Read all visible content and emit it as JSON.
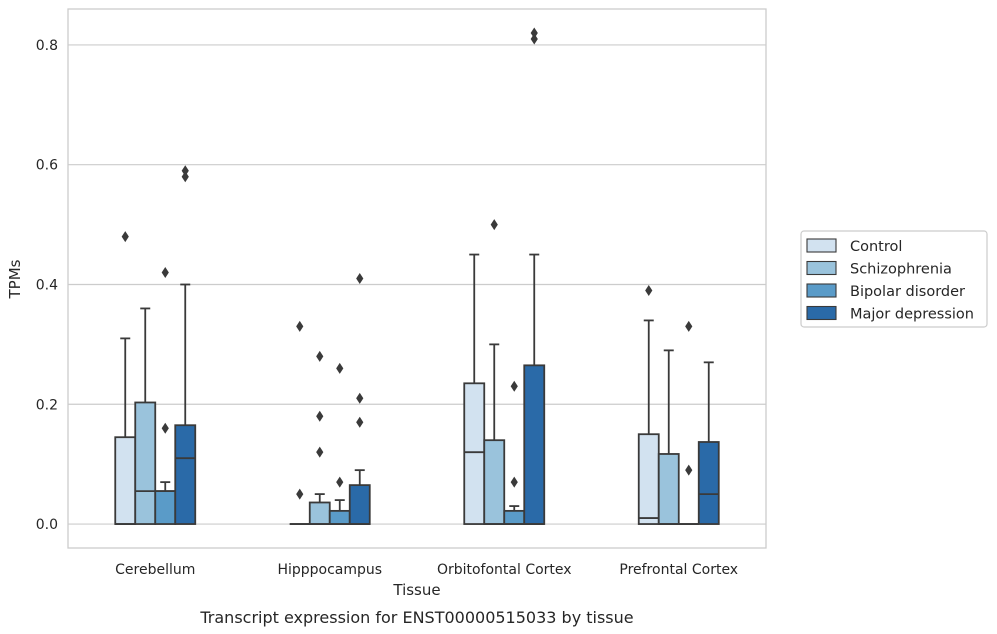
{
  "caption": "Transcript expression for ENST00000515033 by tissue",
  "chart_data": {
    "type": "box",
    "xlabel": "Tissue",
    "ylabel": "TPMs",
    "ylim": [
      -0.04,
      0.86
    ],
    "yticks": [
      0.0,
      0.2,
      0.4,
      0.6,
      0.8
    ],
    "ytick_labels": [
      "0.0",
      "0.2",
      "0.4",
      "0.6",
      "0.8"
    ],
    "grid": "horizontal",
    "legend_position": "right",
    "categories": [
      "Cerebellum",
      "Hipppocampus",
      "Orbitofontal Cortex",
      "Prefrontal Cortex"
    ],
    "series": [
      {
        "name": "Control",
        "color": "#d2e2f0",
        "boxes": [
          {
            "q1": 0.0,
            "median": 0.0,
            "q3": 0.145,
            "whisker_low": 0.0,
            "whisker_high": 0.31,
            "outliers": [
              0.48
            ]
          },
          {
            "q1": 0.0,
            "median": 0.0,
            "q3": 0.0,
            "whisker_low": 0.0,
            "whisker_high": 0.0,
            "outliers": [
              0.05,
              0.33
            ]
          },
          {
            "q1": 0.0,
            "median": 0.12,
            "q3": 0.235,
            "whisker_low": 0.0,
            "whisker_high": 0.45,
            "outliers": []
          },
          {
            "q1": 0.0,
            "median": 0.01,
            "q3": 0.15,
            "whisker_low": 0.0,
            "whisker_high": 0.34,
            "outliers": [
              0.39
            ]
          }
        ]
      },
      {
        "name": "Schizophrenia",
        "color": "#9ac3dc",
        "boxes": [
          {
            "q1": 0.0,
            "median": 0.055,
            "q3": 0.203,
            "whisker_low": 0.0,
            "whisker_high": 0.36,
            "outliers": []
          },
          {
            "q1": 0.0,
            "median": 0.0,
            "q3": 0.036,
            "whisker_low": 0.0,
            "whisker_high": 0.05,
            "outliers": [
              0.12,
              0.18,
              0.28
            ]
          },
          {
            "q1": 0.0,
            "median": 0.0,
            "q3": 0.14,
            "whisker_low": 0.0,
            "whisker_high": 0.3,
            "outliers": [
              0.5
            ]
          },
          {
            "q1": 0.0,
            "median": 0.0,
            "q3": 0.117,
            "whisker_low": 0.0,
            "whisker_high": 0.29,
            "outliers": []
          }
        ]
      },
      {
        "name": "Bipolar disorder",
        "color": "#5a9bc8",
        "boxes": [
          {
            "q1": 0.0,
            "median": 0.055,
            "q3": 0.055,
            "whisker_low": 0.0,
            "whisker_high": 0.07,
            "outliers": [
              0.16,
              0.42
            ]
          },
          {
            "q1": 0.0,
            "median": 0.0,
            "q3": 0.022,
            "whisker_low": 0.0,
            "whisker_high": 0.04,
            "outliers": [
              0.07,
              0.26
            ]
          },
          {
            "q1": 0.0,
            "median": 0.0,
            "q3": 0.022,
            "whisker_low": 0.0,
            "whisker_high": 0.03,
            "outliers": [
              0.07,
              0.23
            ]
          },
          {
            "q1": 0.0,
            "median": 0.0,
            "q3": 0.0,
            "whisker_low": 0.0,
            "whisker_high": 0.0,
            "outliers": [
              0.09,
              0.33
            ]
          }
        ]
      },
      {
        "name": "Major depression",
        "color": "#2a6aa8",
        "boxes": [
          {
            "q1": 0.0,
            "median": 0.11,
            "q3": 0.165,
            "whisker_low": 0.0,
            "whisker_high": 0.4,
            "outliers": [
              0.58,
              0.59
            ]
          },
          {
            "q1": 0.0,
            "median": 0.0,
            "q3": 0.065,
            "whisker_low": 0.0,
            "whisker_high": 0.09,
            "outliers": [
              0.17,
              0.21,
              0.41
            ]
          },
          {
            "q1": 0.0,
            "median": 0.0,
            "q3": 0.265,
            "whisker_low": 0.0,
            "whisker_high": 0.45,
            "outliers": [
              0.81,
              0.82
            ]
          },
          {
            "q1": 0.0,
            "median": 0.05,
            "q3": 0.137,
            "whisker_low": 0.0,
            "whisker_high": 0.27,
            "outliers": []
          }
        ]
      }
    ]
  }
}
